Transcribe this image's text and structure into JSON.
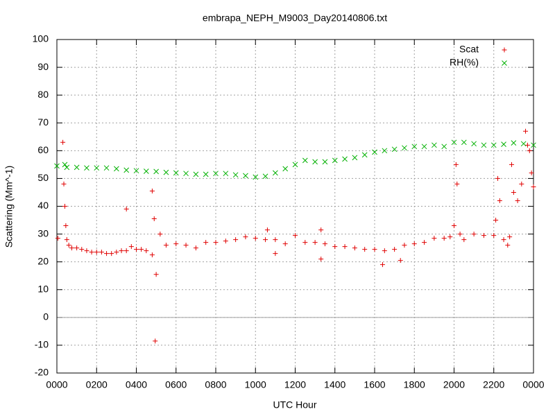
{
  "chart_data": {
    "type": "scatter",
    "title": "embrapa_NEPH_M9003_Day20140806.txt",
    "xlabel": "UTC Hour",
    "ylabel": "Scattering (Mm^-1)",
    "xlim": [
      0,
      24
    ],
    "ylim": [
      -20,
      100
    ],
    "xticks": [
      {
        "value": 0,
        "label": "0000"
      },
      {
        "value": 2,
        "label": "0200"
      },
      {
        "value": 4,
        "label": "0400"
      },
      {
        "value": 6,
        "label": "0600"
      },
      {
        "value": 8,
        "label": "0800"
      },
      {
        "value": 10,
        "label": "1000"
      },
      {
        "value": 12,
        "label": "1200"
      },
      {
        "value": 14,
        "label": "1400"
      },
      {
        "value": 16,
        "label": "1600"
      },
      {
        "value": 18,
        "label": "1800"
      },
      {
        "value": 20,
        "label": "2000"
      },
      {
        "value": 22,
        "label": "2200"
      },
      {
        "value": 24,
        "label": "0000"
      }
    ],
    "yticks": [
      -20,
      -10,
      0,
      10,
      20,
      30,
      40,
      50,
      60,
      70,
      80,
      90,
      100
    ],
    "grid": true,
    "zeroaxis": true,
    "legend": "top-right",
    "series": [
      {
        "name": "Scat",
        "color": "#e00000",
        "marker": "plus",
        "x": [
          0.05,
          0.3,
          0.35,
          0.4,
          0.45,
          0.5,
          0.6,
          0.75,
          1,
          1.25,
          1.5,
          1.75,
          2,
          2.25,
          2.5,
          2.75,
          3,
          3.25,
          3.5,
          3.5,
          3.75,
          4,
          4.25,
          4.5,
          4.8,
          4.8,
          4.9,
          4.95,
          5,
          5.2,
          5.5,
          6,
          6.5,
          7,
          7.5,
          8,
          8.5,
          9,
          9.5,
          10,
          10.5,
          10.6,
          11,
          11,
          11.5,
          12,
          12.5,
          13,
          13.3,
          13.3,
          13.5,
          14,
          14.5,
          15,
          15.5,
          16,
          16.4,
          16.5,
          17,
          17.3,
          17.5,
          18,
          18.5,
          19,
          19.5,
          19.8,
          20,
          20.1,
          20.15,
          20.3,
          20.5,
          21,
          21.5,
          22,
          22.1,
          22.2,
          22.3,
          22.5,
          22.7,
          22.8,
          22.9,
          23,
          23.2,
          23.4,
          23.6,
          23.7,
          23.8,
          23.9,
          24
        ],
        "values": [
          28.5,
          63,
          48,
          40,
          33,
          28,
          26,
          25,
          25,
          24.5,
          24,
          23.5,
          23.5,
          23.5,
          23,
          23,
          23.5,
          24,
          24,
          39,
          25.5,
          24.5,
          24.5,
          24,
          22.5,
          45.5,
          35.5,
          -8.5,
          15.5,
          30,
          26,
          26.5,
          26,
          25,
          27,
          27,
          27.5,
          28,
          29,
          28.5,
          28,
          31.5,
          28,
          23,
          26.5,
          29.5,
          27,
          27,
          31.5,
          21,
          26.5,
          25.5,
          25.5,
          25,
          24.5,
          24.5,
          19,
          24,
          24.5,
          20.5,
          26,
          26.5,
          27,
          28.5,
          28.5,
          29,
          33,
          55,
          48,
          30,
          28,
          30,
          29.5,
          29.5,
          35,
          50,
          42,
          28,
          26,
          29,
          55,
          45,
          42,
          48,
          67,
          62,
          60,
          52,
          47
        ]
      },
      {
        "name": "RH(%)",
        "color": "#00b000",
        "marker": "cross",
        "x": [
          0,
          0.4,
          0.5,
          1,
          1.5,
          2,
          2.5,
          3,
          3.5,
          4,
          4.5,
          5,
          5.5,
          6,
          6.5,
          7,
          7.5,
          8,
          8.5,
          9,
          9.5,
          10,
          10.5,
          11,
          11.5,
          12,
          12.5,
          13,
          13.5,
          14,
          14.5,
          15,
          15.5,
          16,
          16.5,
          17,
          17.5,
          18,
          18.5,
          19,
          19.5,
          20,
          20.5,
          21,
          21.5,
          22,
          22.5,
          23,
          23.5,
          24
        ],
        "values": [
          54.5,
          55,
          54,
          54,
          53.8,
          53.8,
          53.8,
          53.5,
          53,
          52.8,
          52.6,
          52.5,
          52.2,
          52,
          51.8,
          51.5,
          51.5,
          51.8,
          51.8,
          51.3,
          51,
          50.5,
          50.8,
          52,
          53.5,
          55,
          56.5,
          56,
          56,
          56.5,
          57,
          57.5,
          58.5,
          59.5,
          60,
          60.5,
          61,
          61.5,
          61.5,
          62,
          61.5,
          63,
          63,
          62.5,
          62,
          62,
          62.3,
          62.8,
          62.5,
          62
        ]
      }
    ]
  }
}
